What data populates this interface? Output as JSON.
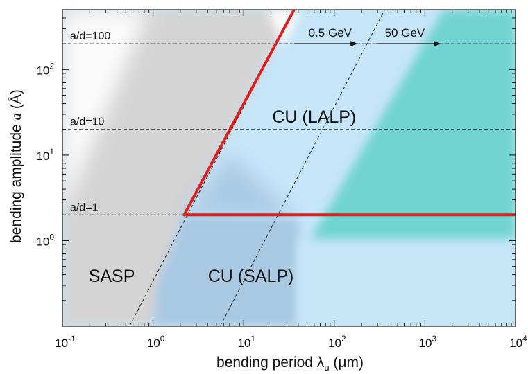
{
  "chart_data": {
    "type": "region-map",
    "xlabel": "bending period λ",
    "xlabel_sub": "u",
    "xlabel_unit": "(μm)",
    "ylabel": "bending amplitude",
    "ylabel_var": "a",
    "ylabel_unit": "(Å)",
    "x_scale": "log",
    "y_scale": "log",
    "xlim": [
      0.1,
      10000
    ],
    "ylim": [
      0.1,
      500
    ],
    "x_ticks": [
      {
        "base": "10",
        "exp": "-1",
        "value": 0.1
      },
      {
        "base": "10",
        "exp": "0",
        "value": 1
      },
      {
        "base": "10",
        "exp": "1",
        "value": 10
      },
      {
        "base": "10",
        "exp": "2",
        "value": 100
      },
      {
        "base": "10",
        "exp": "3",
        "value": 1000
      },
      {
        "base": "10",
        "exp": "4",
        "value": 10000
      }
    ],
    "y_ticks": [
      {
        "base": "10",
        "exp": "0",
        "value": 1
      },
      {
        "base": "10",
        "exp": "1",
        "value": 10
      },
      {
        "base": "10",
        "exp": "2",
        "value": 100
      }
    ],
    "regions": [
      {
        "label": "SASP",
        "color": "#d5d5d5",
        "label_at": [
          0.35,
          0.33
        ]
      },
      {
        "label": "CU (SALP)",
        "color": "#a9c8e2",
        "label_at": [
          12,
          0.33
        ]
      },
      {
        "label": "CU (LALP)",
        "color": "#c4e3f7",
        "label_at": [
          60,
          24
        ]
      }
    ],
    "colors": {
      "background_light": "#c6e5f8",
      "teal": "#71d4d0",
      "gray": "#d4d4d4",
      "boundary": "#e41d1d"
    },
    "reference_lines": [
      {
        "label": "a/d=100",
        "y": 200
      },
      {
        "label": "a/d=10",
        "y": 20
      },
      {
        "label": "a/d=1",
        "y": 2
      }
    ],
    "boundary": [
      {
        "x": [
          2.2,
          10000
        ],
        "y": [
          2,
          2
        ]
      },
      {
        "x": [
          2.2,
          36
        ],
        "y": [
          2,
          500
        ]
      }
    ],
    "energy_lines": [
      {
        "label": "0.5 GeV",
        "x": [
          0.55,
          36
        ],
        "y": [
          0.1,
          500
        ]
      },
      {
        "label": "50 GeV",
        "x": [
          5.5,
          360
        ],
        "y": [
          0.1,
          500
        ]
      }
    ]
  }
}
